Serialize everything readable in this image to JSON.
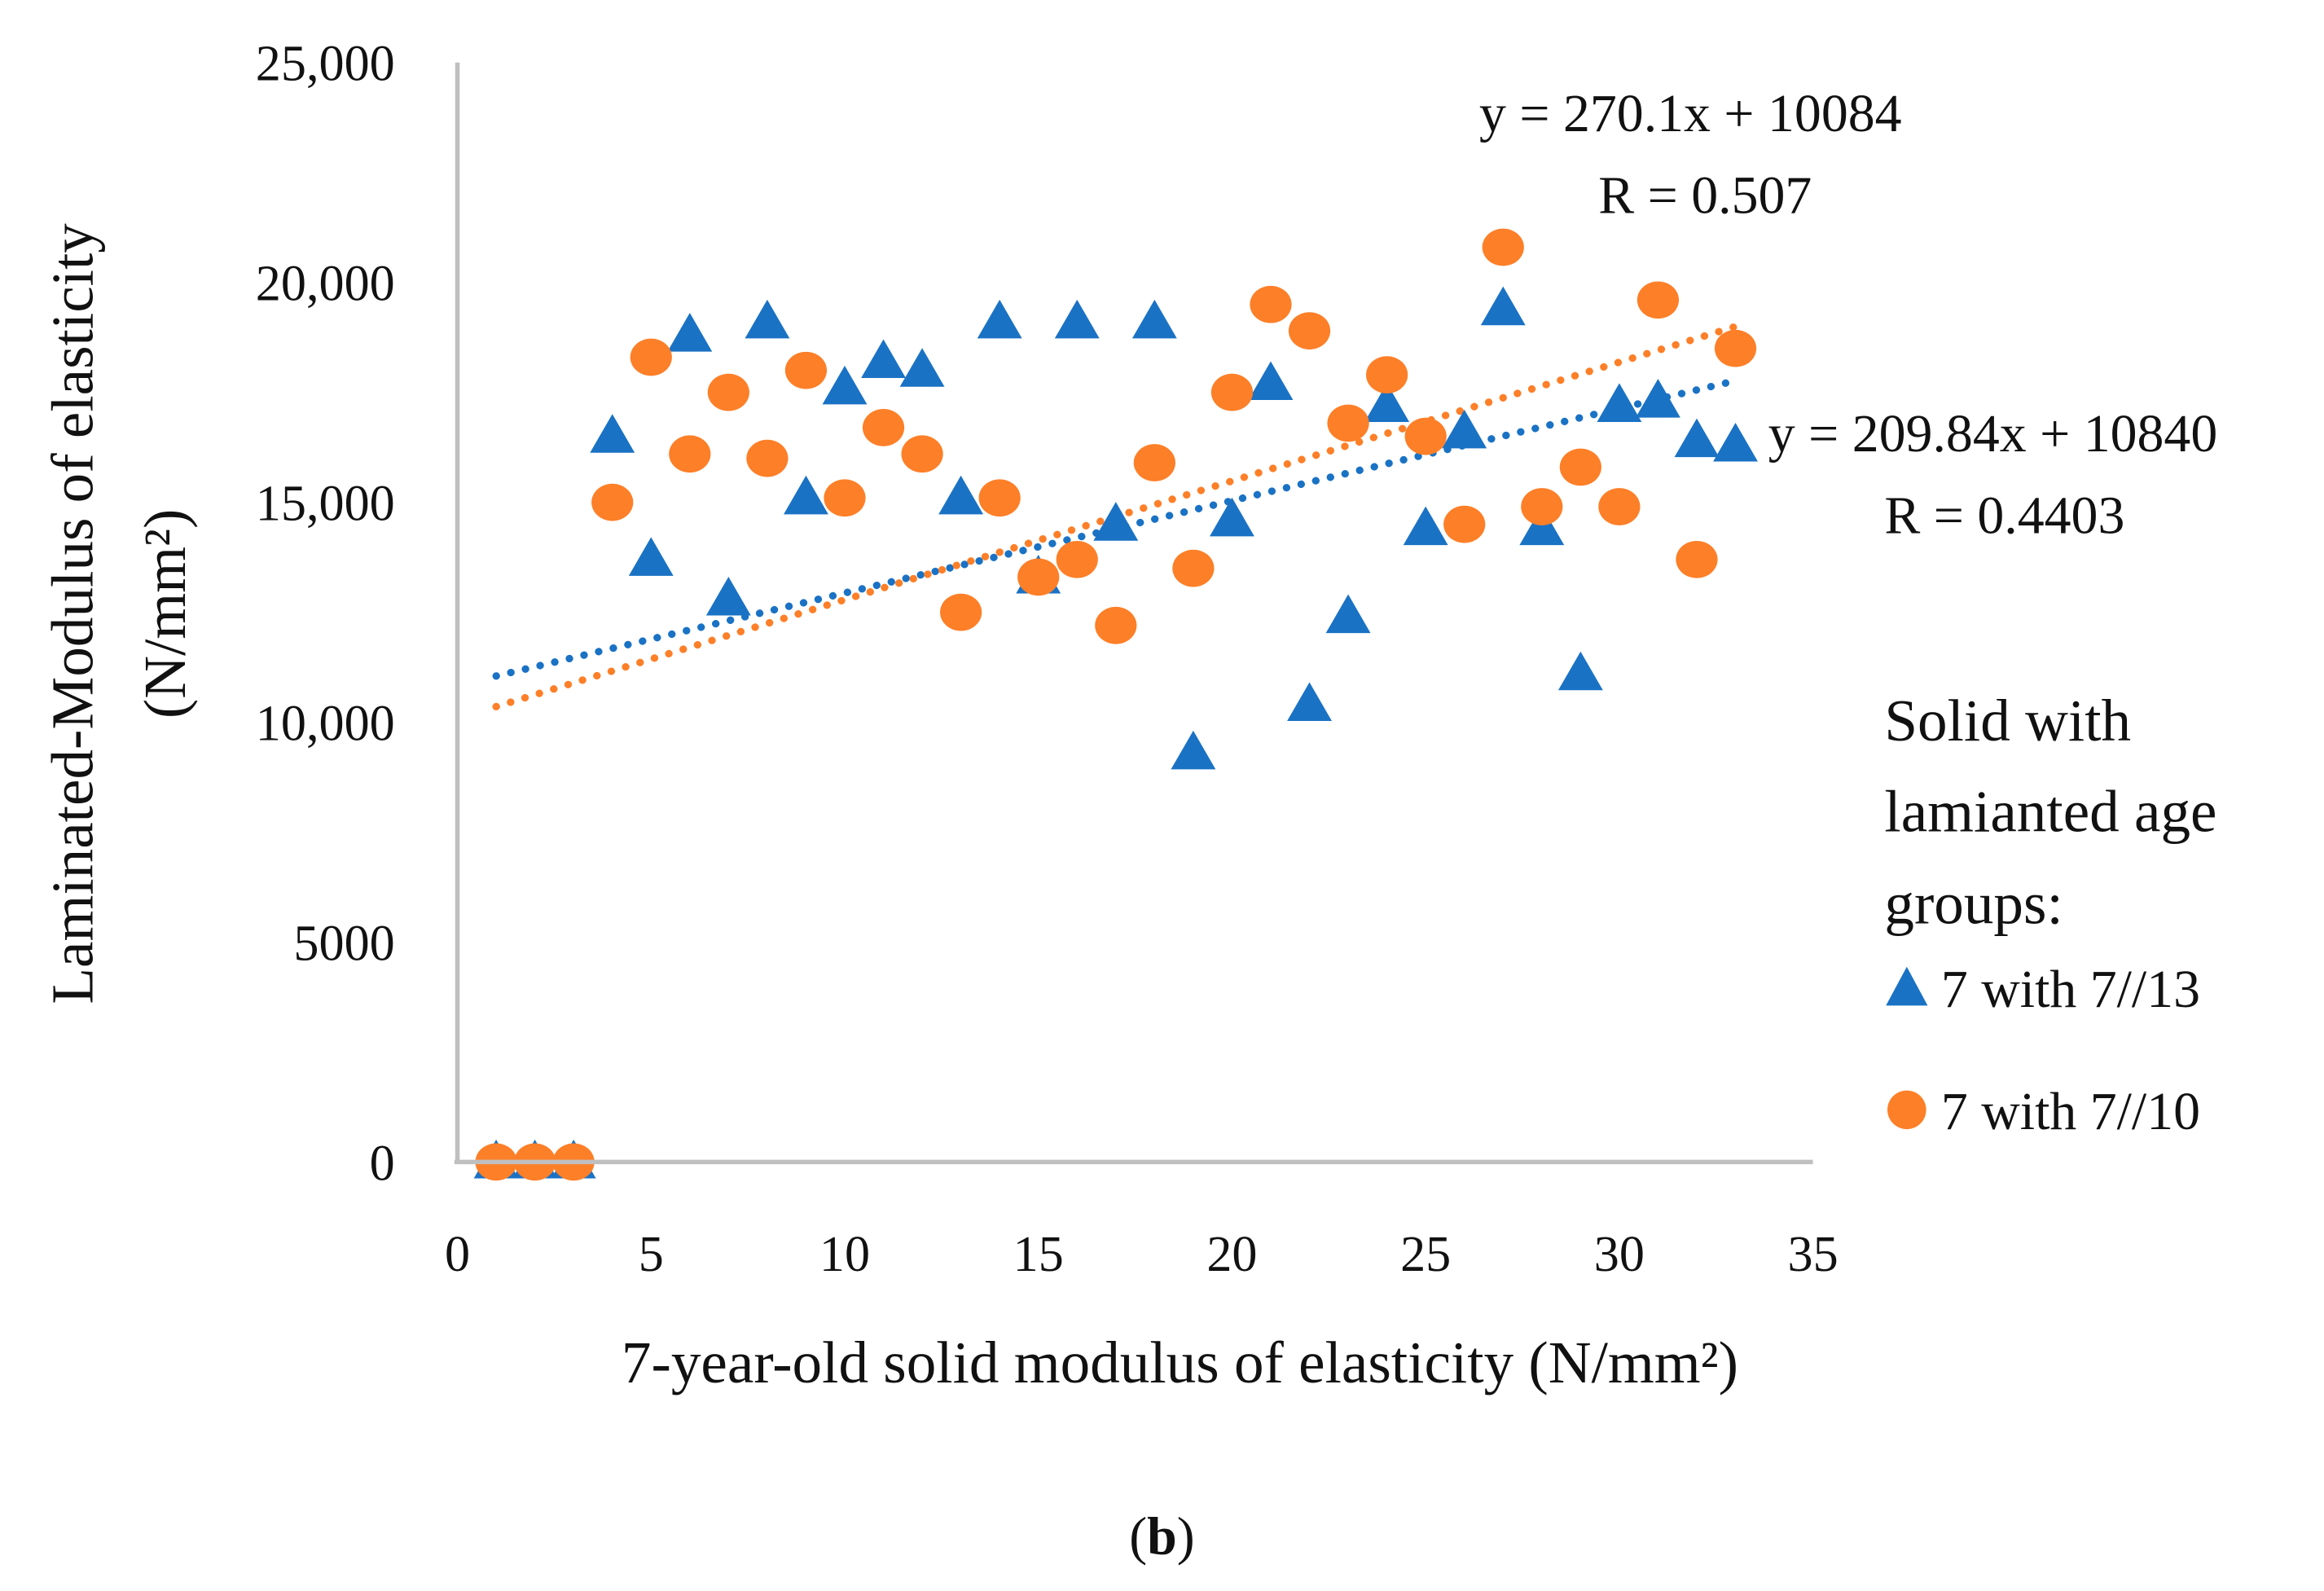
{
  "chart_data": {
    "type": "scatter",
    "xlabel": "7-year-old solid modulus of elasticity (N/mm²)",
    "ylabel": [
      "Laminated-Modulus of elasticity",
      "(N/mm²)"
    ],
    "xlim": [
      0,
      35
    ],
    "ylim": [
      0,
      25000
    ],
    "x_ticks": [
      0,
      5,
      10,
      15,
      20,
      25,
      30,
      35
    ],
    "x_tick_labels": [
      "0",
      "5",
      "10",
      "15",
      "20",
      "25",
      "30",
      "35"
    ],
    "y_ticks": [
      0,
      5000,
      10000,
      15000,
      20000,
      25000
    ],
    "y_tick_labels": [
      "0",
      "5000",
      "10,000",
      "15,000",
      "20,000",
      "25,000"
    ],
    "grid": false,
    "legend": {
      "title": [
        "Solid with",
        "lamianted age",
        "groups:"
      ],
      "placement": "right"
    },
    "x": [
      1,
      2,
      3,
      4,
      5,
      6,
      7,
      8,
      9,
      10,
      11,
      12,
      13,
      14,
      15,
      16,
      17,
      18,
      19,
      20,
      21,
      22,
      23,
      24,
      25,
      26,
      27,
      28,
      29,
      30,
      31,
      32,
      33
    ],
    "series": [
      {
        "name": "7 with 7//13",
        "marker": "triangle",
        "color": "#1a72c4",
        "values": [
          0,
          0,
          0,
          16500,
          13700,
          18800,
          12800,
          19100,
          15100,
          17600,
          18200,
          18000,
          15100,
          19100,
          13300,
          19100,
          14500,
          19100,
          9300,
          14600,
          17700,
          10400,
          12400,
          17200,
          14400,
          16600,
          19400,
          14400,
          11100,
          17200,
          17300,
          16400,
          16300
        ],
        "trendline": {
          "slope": 209.84,
          "intercept": 10840,
          "equation": "y = 209.84x + 10840",
          "r_label": "R = 0.4403"
        }
      },
      {
        "name": "7 with 7//10",
        "marker": "circle",
        "color": "#fd7f28",
        "values": [
          0,
          0,
          0,
          15000,
          18300,
          16100,
          17500,
          16000,
          18000,
          15100,
          16700,
          16100,
          12500,
          15100,
          13300,
          13700,
          12200,
          15900,
          13500,
          17500,
          19500,
          18900,
          16800,
          17900,
          16500,
          14500,
          20800,
          14900,
          15800,
          14900,
          19600,
          13700,
          18500
        ],
        "trendline": {
          "slope": 270.1,
          "intercept": 10084,
          "equation": "y = 270.1x + 10084",
          "r_label": "R = 0.507"
        }
      }
    ],
    "caption": {
      "open": "(",
      "letter": "b",
      "close": ")"
    }
  }
}
